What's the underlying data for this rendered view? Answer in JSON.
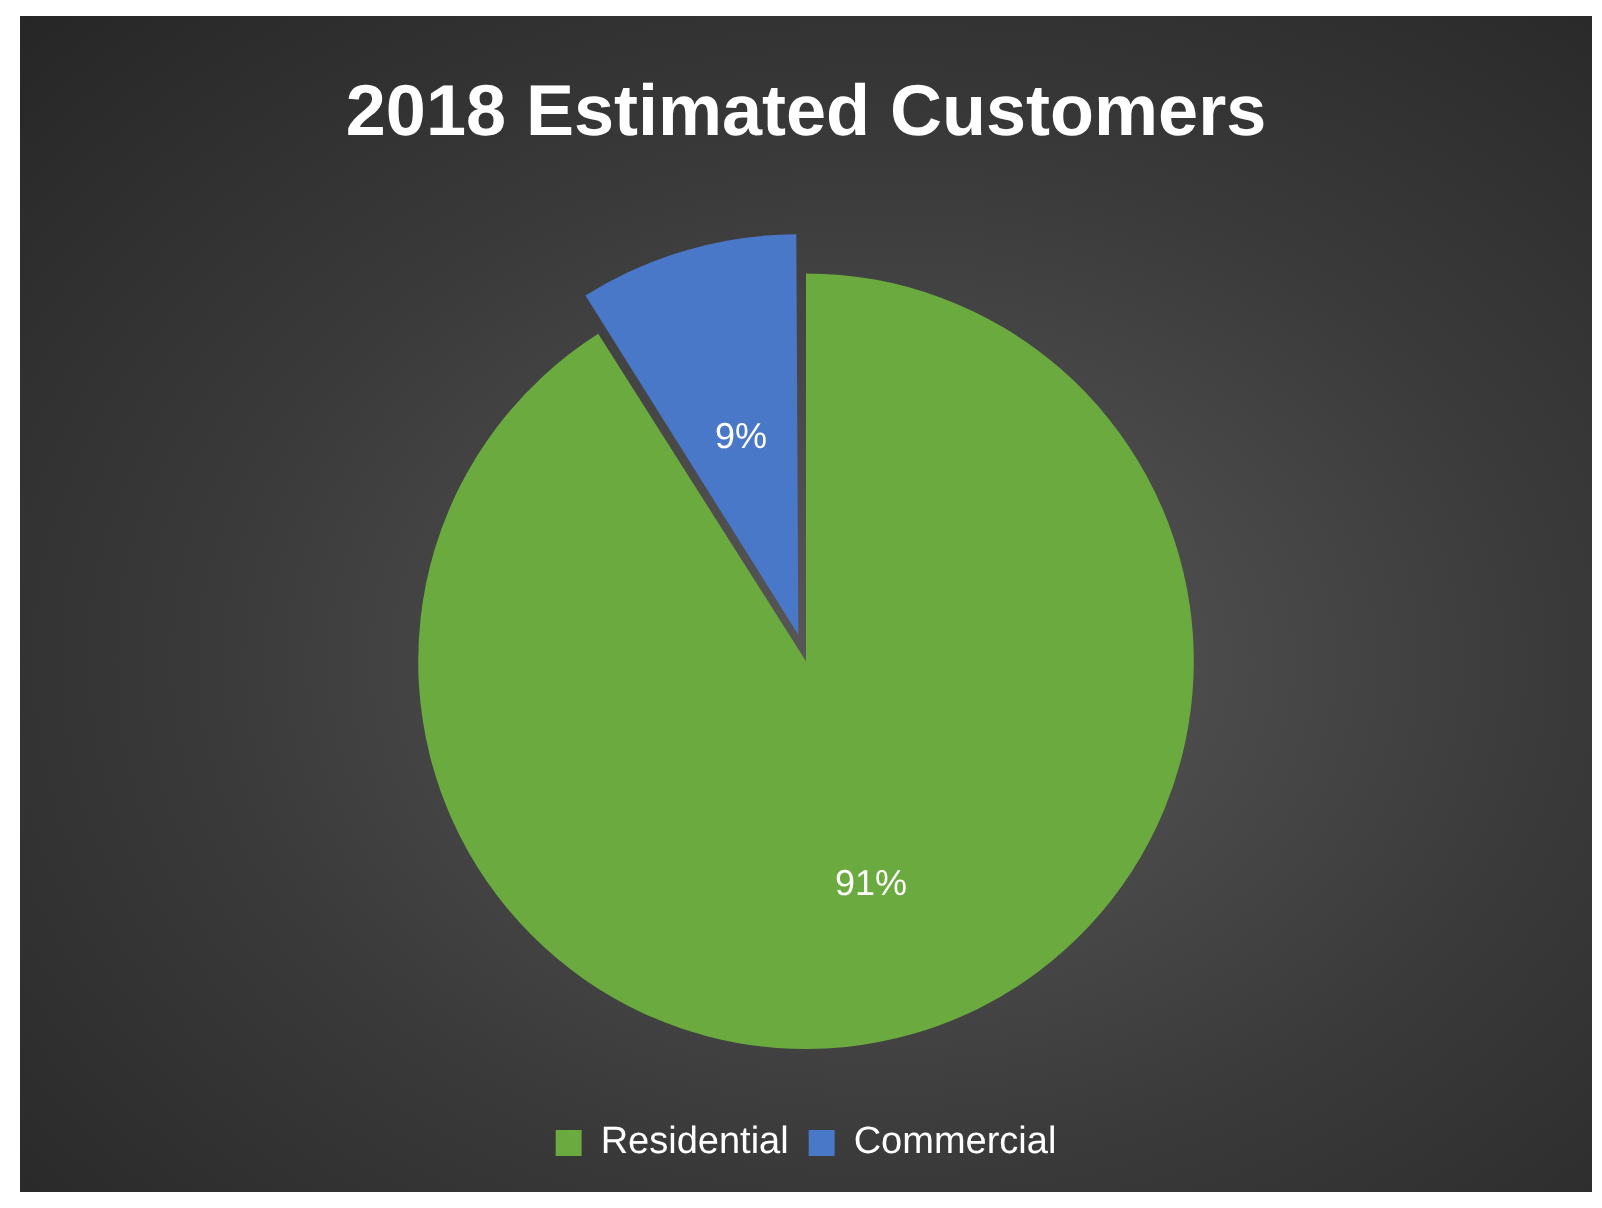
{
  "chart_data": {
    "type": "pie",
    "title": "2018 Estimated Customers",
    "categories": [
      "Residential",
      "Commercial"
    ],
    "values": [
      91,
      9
    ],
    "value_labels": [
      "91%",
      "9%"
    ],
    "colors": [
      "#6aaa3f",
      "#4a78c8"
    ],
    "legend": "bottom"
  }
}
